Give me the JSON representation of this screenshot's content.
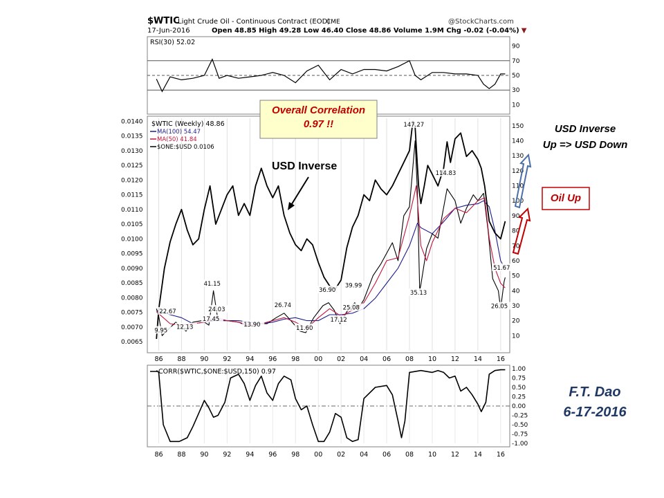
{
  "header": {
    "symbol": "$WTIC",
    "description": "Light Crude Oil - Continuous Contract (EOD)",
    "exchange": "CME",
    "watermark": "@StockCharts.com",
    "date": "17-Jun-2016",
    "quote": "Open 48.85  High 49.28  Low 46.40  Close 48.86  Volume 1.9M  Chg -0.02 (-0.04%)"
  },
  "callouts": {
    "correlation_line1": "Overall Correlation",
    "correlation_line2": "0.97 !!",
    "usd_inverse": "USD Inverse",
    "usd_inverse_right_line1": "USD Inverse",
    "usd_inverse_right_line2": "Up => USD Down",
    "oil_up": "Oil Up",
    "author": "F.T. Dao",
    "author_date": "6-17-2016"
  },
  "colors": {
    "oil": "#000000",
    "ma100": "#1c1c8a",
    "ma50": "#c0143c",
    "usd": "#000000",
    "arrow_blue": "#4a6fa5",
    "arrow_red": "#c00000",
    "author": "#1f3864"
  },
  "chart_data": [
    {
      "type": "line",
      "panel": "rsi",
      "legend": "RSI(30) 52.02",
      "y_ticks": [
        90,
        70,
        50,
        30,
        10
      ],
      "ylim": [
        0,
        100
      ],
      "reference_lines": [
        70,
        50,
        30
      ],
      "series": [
        {
          "name": "RSI(30)",
          "x": [
            1985.8,
            1986.3,
            1987,
            1988,
            1989,
            1990,
            1990.7,
            1991.3,
            1992,
            1993,
            1994,
            1995,
            1996,
            1997,
            1998,
            1999,
            2000,
            2001,
            2002,
            2003,
            2004,
            2005,
            2006,
            2007,
            2008,
            2008.5,
            2009,
            2010,
            2011,
            2012,
            2013,
            2014,
            2014.5,
            2015,
            2015.5,
            2016,
            2016.4
          ],
          "y": [
            45,
            28,
            48,
            44,
            46,
            50,
            72,
            46,
            50,
            46,
            48,
            50,
            54,
            50,
            40,
            56,
            64,
            44,
            58,
            52,
            58,
            58,
            56,
            62,
            70,
            50,
            44,
            54,
            54,
            52,
            52,
            50,
            38,
            32,
            38,
            52,
            52
          ]
        }
      ]
    },
    {
      "type": "line",
      "panel": "price",
      "legend": [
        "$WTIC (Weekly) 48.86",
        "MA(100) 54.47",
        "MA(50) 41.84",
        "$ONE:$USD 0.0106"
      ],
      "x_ticks": [
        "86",
        "88",
        "90",
        "92",
        "94",
        "96",
        "98",
        "00",
        "02",
        "04",
        "06",
        "08",
        "10",
        "12",
        "14",
        "16"
      ],
      "y_right_ticks": [
        150,
        140,
        130,
        120,
        110,
        100,
        90,
        80,
        70,
        60,
        50,
        40,
        30,
        20,
        10
      ],
      "y_left_ticks": [
        "0.0140",
        "0.0135",
        "0.0130",
        "0.0125",
        "0.0120",
        "0.0115",
        "0.0110",
        "0.0105",
        "0.0100",
        "0.0095",
        "0.0090",
        "0.0085",
        "0.0080",
        "0.0075",
        "0.0070",
        "0.0065"
      ],
      "ylim_right": [
        0,
        155
      ],
      "ylim_left": [
        0.0062,
        0.0141
      ],
      "price_labels": [
        {
          "x": 1986.3,
          "y": 9.95,
          "text": "9.95"
        },
        {
          "x": 1986.9,
          "y": 22.67,
          "text": "22.67"
        },
        {
          "x": 1988.4,
          "y": 12.13,
          "text": "12.13"
        },
        {
          "x": 1990.8,
          "y": 41.15,
          "text": "41.15"
        },
        {
          "x": 1991.2,
          "y": 24.03,
          "text": "24.03"
        },
        {
          "x": 1990.7,
          "y": 17.45,
          "text": "17.45"
        },
        {
          "x": 1994.3,
          "y": 13.9,
          "text": "13.90"
        },
        {
          "x": 1997.0,
          "y": 26.74,
          "text": "26.74"
        },
        {
          "x": 1998.9,
          "y": 11.6,
          "text": "11.60"
        },
        {
          "x": 2000.9,
          "y": 36.9,
          "text": "36.90"
        },
        {
          "x": 2001.9,
          "y": 17.12,
          "text": "17.12"
        },
        {
          "x": 2003.2,
          "y": 39.99,
          "text": "39.99"
        },
        {
          "x": 2003.0,
          "y": 25.08,
          "text": "25.08"
        },
        {
          "x": 2008.5,
          "y": 147.27,
          "text": "147.27"
        },
        {
          "x": 2011.3,
          "y": 114.83,
          "text": "114.83"
        },
        {
          "x": 2008.9,
          "y": 35.13,
          "text": "35.13"
        },
        {
          "x": 2016.2,
          "y": 51.67,
          "text": "51.67"
        },
        {
          "x": 2016.0,
          "y": 26.05,
          "text": "26.05"
        }
      ],
      "series": [
        {
          "name": "$WTIC (Weekly)",
          "axis": "right",
          "x": [
            1985.8,
            1986.0,
            1986.3,
            1986.8,
            1987.5,
            1988.4,
            1989.0,
            1989.8,
            1990.4,
            1990.8,
            1991.2,
            1992.0,
            1993.0,
            1993.9,
            1994.5,
            1995.5,
            1996.3,
            1997.0,
            1997.6,
            1998.4,
            1998.9,
            1999.6,
            2000.4,
            2000.9,
            2001.4,
            2001.9,
            2002.5,
            2003.2,
            2003.5,
            2004.0,
            2004.8,
            2005.5,
            2006.5,
            2007.0,
            2007.5,
            2008.0,
            2008.5,
            2008.7,
            2008.9,
            2009.0,
            2009.5,
            2010.0,
            2010.5,
            2011.3,
            2012.0,
            2012.5,
            2013.0,
            2013.6,
            2014.0,
            2014.5,
            2014.9,
            2015.3,
            2015.8,
            2016.0,
            2016.3,
            2016.4
          ],
          "y": [
            28,
            23,
            10,
            14,
            19,
            13,
            19,
            20,
            17,
            40,
            20,
            20,
            19,
            16,
            18,
            18,
            22,
            25,
            20,
            13,
            12,
            22,
            30,
            32,
            27,
            18,
            26,
            32,
            28,
            34,
            50,
            58,
            72,
            60,
            90,
            96,
            140,
            105,
            40,
            44,
            68,
            78,
            75,
            108,
            100,
            85,
            95,
            104,
            100,
            105,
            80,
            48,
            40,
            28,
            46,
            48.86
          ]
        },
        {
          "name": "MA(100)",
          "axis": "right",
          "x": [
            1985.8,
            1987,
            1988,
            1989,
            1990,
            1991,
            1992,
            1993,
            1994,
            1995,
            1996,
            1997,
            1998,
            1999,
            2000,
            2001,
            2002,
            2003,
            2004,
            2005,
            2006,
            2007,
            2008,
            2008.7,
            2009,
            2010,
            2011,
            2012,
            2013,
            2014,
            2014.5,
            2015,
            2015.5,
            2016,
            2016.4
          ],
          "y": [
            27,
            24,
            22,
            18,
            19,
            20,
            20,
            20,
            19,
            18,
            19,
            21,
            22,
            20,
            20,
            24,
            24,
            25,
            28,
            35,
            45,
            55,
            70,
            85,
            82,
            78,
            86,
            95,
            97,
            98,
            100,
            96,
            80,
            60,
            54.47
          ]
        },
        {
          "name": "MA(50)",
          "axis": "right",
          "x": [
            1985.8,
            1987,
            1988,
            1989,
            1990,
            1991,
            1992,
            1993,
            1994,
            1995,
            1996,
            1997,
            1998,
            1999,
            2000,
            2001,
            2002,
            2003,
            2004,
            2005,
            2006,
            2007,
            2008,
            2008.6,
            2009,
            2009.5,
            2010,
            2011,
            2012,
            2013,
            2014,
            2014.6,
            2015,
            2015.5,
            2016,
            2016.4
          ],
          "y": [
            26,
            18,
            17,
            18,
            19,
            22,
            20,
            19,
            17,
            18,
            20,
            22,
            19,
            15,
            22,
            28,
            23,
            27,
            32,
            45,
            60,
            62,
            90,
            110,
            70,
            60,
            72,
            88,
            95,
            92,
            100,
            102,
            75,
            55,
            45,
            41.84
          ]
        },
        {
          "name": "$ONE:$USD",
          "axis": "left",
          "x": [
            1985.8,
            1986.0,
            1986.5,
            1987.0,
            1987.5,
            1988.0,
            1988.5,
            1989.0,
            1989.5,
            1990.0,
            1990.5,
            1991.0,
            1991.5,
            1992.0,
            1992.5,
            1993.0,
            1993.5,
            1994.0,
            1994.5,
            1995.0,
            1995.5,
            1996.0,
            1996.5,
            1997.0,
            1997.5,
            1998.0,
            1998.5,
            1999.0,
            1999.5,
            2000.0,
            2000.5,
            2001.0,
            2001.5,
            2002.0,
            2002.5,
            2003.0,
            2003.5,
            2004.0,
            2004.5,
            2005.0,
            2005.5,
            2006.0,
            2006.5,
            2007.0,
            2007.5,
            2008.0,
            2008.3,
            2008.5,
            2008.8,
            2009.0,
            2009.3,
            2009.6,
            2010.0,
            2010.5,
            2011.0,
            2011.3,
            2011.6,
            2012.0,
            2012.5,
            2013.0,
            2013.5,
            2014.0,
            2014.3,
            2014.6,
            2015.0,
            2015.5,
            2016.0,
            2016.4
          ],
          "y": [
            0.0066,
            0.0076,
            0.009,
            0.0099,
            0.0105,
            0.011,
            0.0103,
            0.0098,
            0.01,
            0.011,
            0.0118,
            0.0105,
            0.011,
            0.0115,
            0.0118,
            0.0108,
            0.0112,
            0.0108,
            0.0118,
            0.0124,
            0.0118,
            0.0114,
            0.0118,
            0.0108,
            0.0102,
            0.0098,
            0.0096,
            0.01,
            0.0098,
            0.0092,
            0.0087,
            0.0084,
            0.0083,
            0.0086,
            0.0097,
            0.0104,
            0.0108,
            0.0115,
            0.0113,
            0.012,
            0.0117,
            0.0115,
            0.0118,
            0.0122,
            0.0126,
            0.013,
            0.014,
            0.0138,
            0.0118,
            0.0112,
            0.0118,
            0.0125,
            0.0122,
            0.0118,
            0.0124,
            0.0133,
            0.0126,
            0.0134,
            0.0136,
            0.0128,
            0.013,
            0.0127,
            0.0124,
            0.0118,
            0.0106,
            0.0102,
            0.01,
            0.0106
          ]
        }
      ]
    },
    {
      "type": "line",
      "panel": "correlation",
      "legend": "CORR($WTIC,$ONE:$USD,150) 0.97",
      "x_ticks": [
        "86",
        "88",
        "90",
        "92",
        "94",
        "96",
        "98",
        "00",
        "02",
        "04",
        "06",
        "08",
        "10",
        "12",
        "14",
        "16"
      ],
      "y_ticks": [
        "1.00",
        "0.75",
        "0.50",
        "0.25",
        "0.00",
        "-0.25",
        "-0.50",
        "-0.75",
        "-1.00"
      ],
      "ylim": [
        -1.0,
        1.0
      ],
      "series": [
        {
          "name": "CORR($WTIC,$ONE:$USD,150)",
          "x": [
            1985.8,
            1986.0,
            1986.4,
            1987.0,
            1987.8,
            1988.5,
            1989.0,
            1989.5,
            1990.0,
            1990.4,
            1990.8,
            1991.2,
            1991.8,
            1992.3,
            1993.0,
            1993.5,
            1994.0,
            1994.5,
            1995.0,
            1995.5,
            1996.0,
            1996.5,
            1997.0,
            1997.6,
            1998.0,
            1998.5,
            1999.0,
            1999.5,
            2000.0,
            2000.5,
            2001.0,
            2001.5,
            2002.0,
            2002.5,
            2003.0,
            2003.5,
            2004.0,
            2005.0,
            2006.0,
            2006.5,
            2007.0,
            2007.3,
            2007.6,
            2008.0,
            2009.0,
            2010.0,
            2010.5,
            2011.0,
            2011.5,
            2012.0,
            2012.5,
            2013.0,
            2013.5,
            2014.0,
            2014.3,
            2014.7,
            2015.0,
            2015.5,
            2016.0,
            2016.4
          ],
          "y": [
            0.95,
            0.9,
            -0.5,
            -0.95,
            -0.95,
            -0.85,
            -0.55,
            -0.2,
            0.15,
            -0.05,
            -0.3,
            -0.25,
            0.1,
            0.75,
            0.85,
            0.6,
            0.15,
            0.55,
            0.8,
            0.35,
            0.15,
            0.6,
            0.8,
            0.7,
            0.2,
            -0.1,
            0.0,
            -0.5,
            -0.95,
            -0.95,
            -0.7,
            -0.2,
            -0.3,
            -0.85,
            -0.95,
            -0.9,
            0.2,
            0.5,
            0.55,
            0.3,
            -0.4,
            -0.85,
            -0.4,
            0.9,
            0.95,
            0.9,
            0.95,
            0.9,
            0.75,
            0.8,
            0.4,
            0.5,
            0.3,
            0.05,
            -0.15,
            0.1,
            0.85,
            0.95,
            0.97,
            0.97
          ]
        }
      ]
    }
  ]
}
